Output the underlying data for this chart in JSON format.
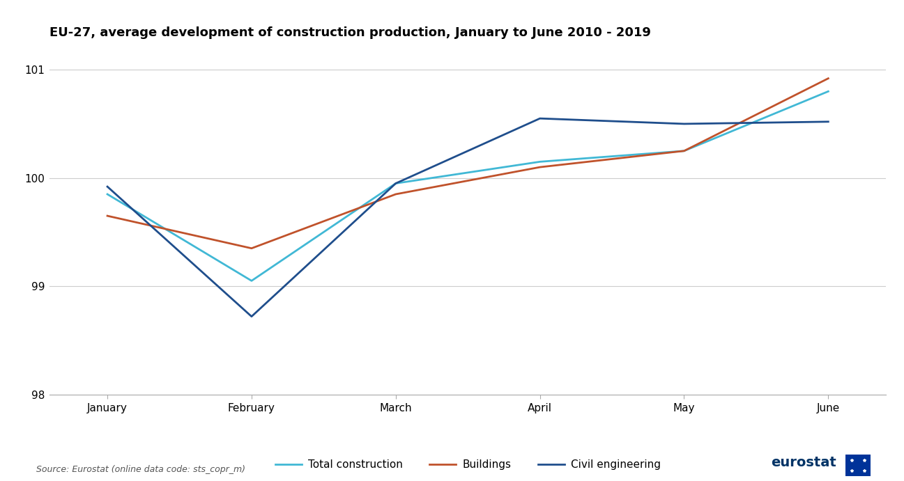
{
  "title": "EU-27, average development of construction production, January to June 2010 - 2019",
  "months": [
    "January",
    "February",
    "March",
    "April",
    "May",
    "June"
  ],
  "total_construction": [
    99.85,
    99.05,
    99.95,
    100.15,
    100.25,
    100.8
  ],
  "buildings": [
    99.65,
    99.35,
    99.85,
    100.1,
    100.25,
    100.92
  ],
  "civil_engineering": [
    99.92,
    98.72,
    99.95,
    100.55,
    100.5,
    100.52
  ],
  "color_total": "#41B8D5",
  "color_buildings": "#C0522B",
  "color_civil": "#1F4E8C",
  "ylim": [
    98.0,
    101.2
  ],
  "yticks": [
    98,
    99,
    100,
    101
  ],
  "source_text": "Source: Eurostat (online data code: sts_copr_m)",
  "legend_labels": [
    "Total construction",
    "Buildings",
    "Civil engineering"
  ],
  "linewidth": 2.0,
  "background_color": "#ffffff",
  "grid_color": "#CCCCCC",
  "spine_color": "#AAAAAA"
}
